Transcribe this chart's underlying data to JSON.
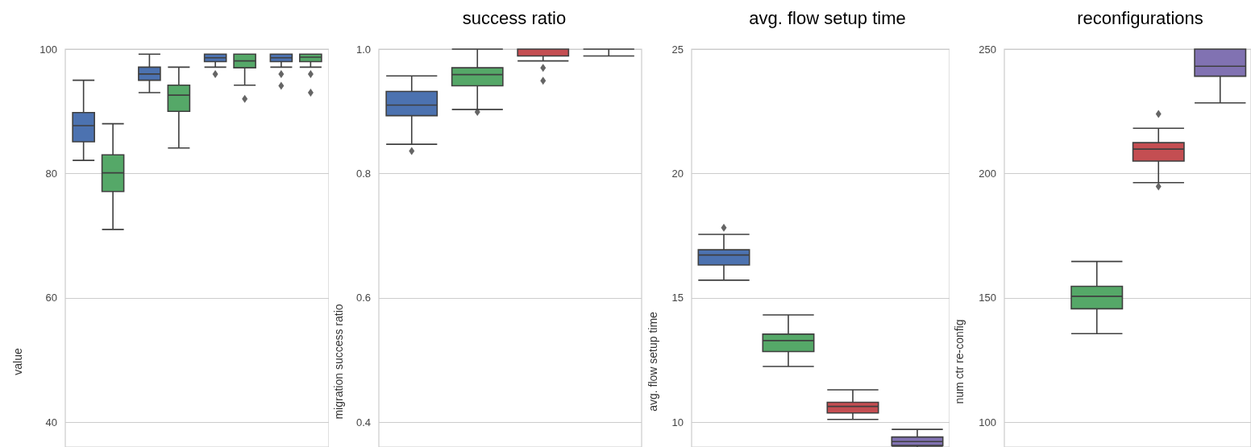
{
  "chart_data": [
    {
      "type": "box",
      "ylabel": "value",
      "categories": [
        null,
        null,
        null,
        null
      ],
      "ylim": [
        36,
        100
      ],
      "yticks": [
        40,
        60,
        80,
        100
      ],
      "grid": "y",
      "tick_labels": "y",
      "marker": "diamond",
      "series": [
        {
          "color": "#4c72b0",
          "boxes": [
            {
              "low": 82.1,
              "q1": 85.1,
              "median": 87.7,
              "q3": 89.8,
              "high": 95.0
            },
            {
              "low": 93.0,
              "q1": 95.0,
              "median": 96.0,
              "q3": 97.1,
              "high": 99.2
            },
            {
              "low": 97.1,
              "q1": 98.0,
              "median": 98.6,
              "q3": 99.2,
              "high": 99.2,
              "outliers": [
                96.0
              ]
            },
            {
              "low": 97.1,
              "q1": 98.0,
              "median": 98.6,
              "q3": 99.2,
              "high": 99.2,
              "outliers": [
                96.0,
                94.1
              ]
            }
          ]
        },
        {
          "color": "#55a868",
          "boxes": [
            {
              "low": 71.0,
              "q1": 77.1,
              "median": 80.1,
              "q3": 83.0,
              "high": 88.0
            },
            {
              "low": 84.1,
              "q1": 90.0,
              "median": 92.6,
              "q3": 94.2,
              "high": 97.1
            },
            {
              "low": 94.2,
              "q1": 97.0,
              "median": 98.1,
              "q3": 99.2,
              "high": 99.2,
              "outliers": [
                92.0
              ]
            },
            {
              "low": 97.1,
              "q1": 98.0,
              "median": 98.7,
              "q3": 99.2,
              "high": 99.2,
              "outliers": [
                96.0,
                93.0
              ]
            }
          ]
        }
      ]
    },
    {
      "type": "box",
      "title": "success ratio",
      "ylabel": "migration success ratio",
      "categories": [
        null,
        null,
        null,
        null
      ],
      "ylim": [
        0.36,
        1.0
      ],
      "yticks": [
        {
          "value": 0.4,
          "label": "0.4"
        },
        {
          "value": 0.6,
          "label": "0.6"
        },
        {
          "value": 0.8,
          "label": "0.8"
        },
        {
          "value": 1.0,
          "label": "1.0"
        }
      ],
      "grid": "y",
      "tick_labels": "y",
      "marker": "diamond",
      "colors": [
        "#4c72b0",
        "#55a868",
        "#c44e52",
        null
      ],
      "boxes": [
        {
          "low": 0.847,
          "q1": 0.893,
          "median": 0.91,
          "q3": 0.932,
          "high": 0.957,
          "outliers": [
            0.836
          ]
        },
        {
          "low": 0.903,
          "q1": 0.941,
          "median": 0.959,
          "q3": 0.97,
          "high": 1.0,
          "outliers": [
            0.899
          ]
        },
        {
          "low": 0.981,
          "q1": 0.989,
          "median": 1.0,
          "q3": 1.0,
          "high": 1.0,
          "outliers": [
            0.97,
            0.949
          ]
        },
        {
          "low": 0.989,
          "q1": 1.0,
          "median": 1.0,
          "q3": 1.0,
          "high": 1.0
        }
      ]
    },
    {
      "type": "box",
      "title": "avg. flow setup time",
      "ylabel": "avg. flow setup time",
      "categories": [
        null,
        null,
        null,
        null
      ],
      "ylim": [
        9,
        25
      ],
      "yticks": [
        10,
        15,
        20,
        25
      ],
      "grid": "y",
      "tick_labels": "y",
      "marker": "diamond",
      "colors": [
        "#4c72b0",
        "#55a868",
        "#c44e52",
        "#8172b2"
      ],
      "boxes": [
        {
          "low": 15.71,
          "q1": 16.32,
          "median": 16.72,
          "q3": 16.93,
          "high": 17.55,
          "outliers": [
            17.82
          ]
        },
        {
          "low": 12.24,
          "q1": 12.84,
          "median": 13.28,
          "q3": 13.54,
          "high": 14.31
        },
        {
          "low": 10.11,
          "q1": 10.37,
          "median": 10.63,
          "q3": 10.8,
          "high": 11.3
        },
        {
          "low": 9.0,
          "q1": 9.06,
          "median": 9.22,
          "q3": 9.4,
          "high": 9.71
        }
      ]
    },
    {
      "type": "box",
      "title": "reconfigurations",
      "ylabel": "num ctr re-config",
      "categories": [
        null,
        null,
        null,
        null
      ],
      "ylim": [
        90,
        250
      ],
      "yticks": [
        100,
        150,
        200,
        250
      ],
      "grid": "y",
      "tick_labels": "y",
      "marker": "diamond",
      "colors": [
        "#4c72b0",
        "#55a868",
        "#c44e52",
        "#8172b2"
      ],
      "boxes": [
        null,
        {
          "low": 135.6,
          "q1": 145.6,
          "median": 150.6,
          "q3": 154.6,
          "high": 164.6
        },
        {
          "low": 196.3,
          "q1": 205.0,
          "median": 209.8,
          "q3": 212.4,
          "high": 218.2,
          "outliers": [
            223.9,
            194.8
          ]
        },
        {
          "low": 228.4,
          "q1": 239.1,
          "median": 243.1,
          "q3": 250,
          "high": 250
        }
      ]
    }
  ]
}
